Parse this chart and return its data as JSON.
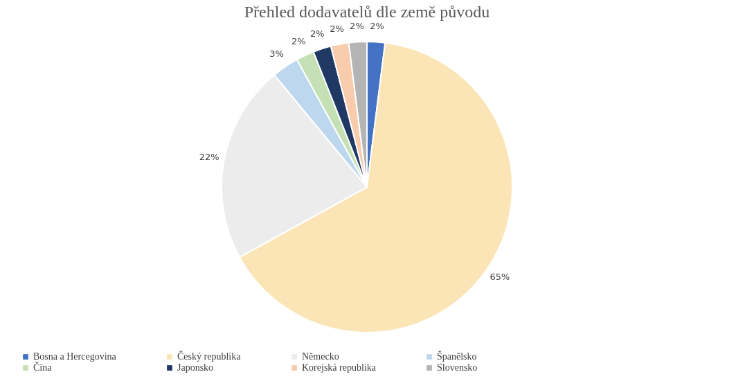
{
  "chart_data": {
    "type": "pie",
    "title": "Přehled dodavatelů  dle země původu",
    "categories": [
      "Bosna a Hercegovina",
      "Český republika",
      "Německo",
      "Španělsko",
      "Čína",
      "Japonsko",
      "Korejská republika",
      "Slovensko"
    ],
    "values": [
      2,
      65,
      22,
      3,
      2,
      2,
      2,
      2
    ],
    "value_labels": [
      "2%",
      "65%",
      "22%",
      "3%",
      "2%",
      "2%",
      "2%",
      "2%"
    ],
    "colors": [
      "#4472c4",
      "#fbe5b6",
      "#ececec",
      "#bdd7ee",
      "#c5e0b4",
      "#1f3864",
      "#f8cbad",
      "#b4b4b4"
    ],
    "legend": "bottom"
  }
}
